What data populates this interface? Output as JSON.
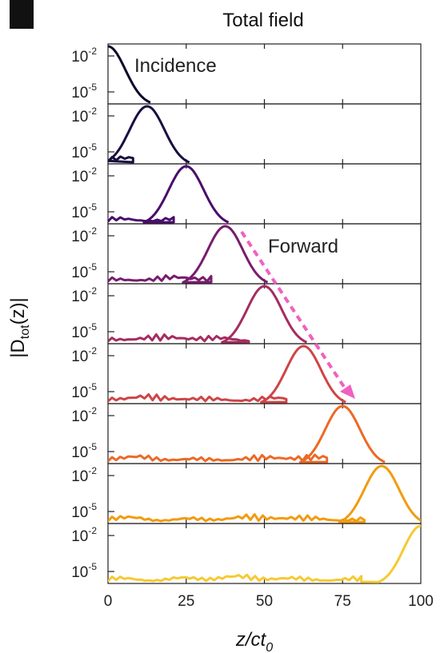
{
  "chart_data": {
    "type": "line",
    "title": "Total field",
    "xlabel": "z/ct",
    "xlabel_sub": "0",
    "ylabel_prefix": "|D",
    "ylabel_sub": "tot",
    "ylabel_suffix": "(z)|",
    "xlim": [
      0,
      100
    ],
    "x_ticks": [
      0,
      25,
      50,
      75,
      100
    ],
    "y_scale": "log",
    "y_ticks": [
      {
        "base": "10",
        "exp": "-2"
      },
      {
        "base": "10",
        "exp": "-5"
      }
    ],
    "annotations": {
      "incidence": {
        "text": "Incidence",
        "color": "#3a8fd8"
      },
      "forward": {
        "text": "Forward",
        "color": "#f060c0"
      }
    },
    "series": [
      {
        "peak_z": 0,
        "color": "#0d0829",
        "noise_end": 0
      },
      {
        "peak_z": 12.5,
        "color": "#1b0c41",
        "noise_end": 8
      },
      {
        "peak_z": 25,
        "color": "#4a0c6b",
        "noise_end": 21
      },
      {
        "peak_z": 37.5,
        "color": "#781c6d",
        "noise_end": 33
      },
      {
        "peak_z": 50,
        "color": "#a52c60",
        "noise_end": 45
      },
      {
        "peak_z": 62.5,
        "color": "#cf4446",
        "noise_end": 57
      },
      {
        "peak_z": 75,
        "color": "#ed6925",
        "noise_end": 70
      },
      {
        "peak_z": 87.5,
        "color": "#f29b0e",
        "noise_end": 82
      },
      {
        "peak_z": 100,
        "color": "#f7c933",
        "noise_end": 81
      }
    ]
  }
}
